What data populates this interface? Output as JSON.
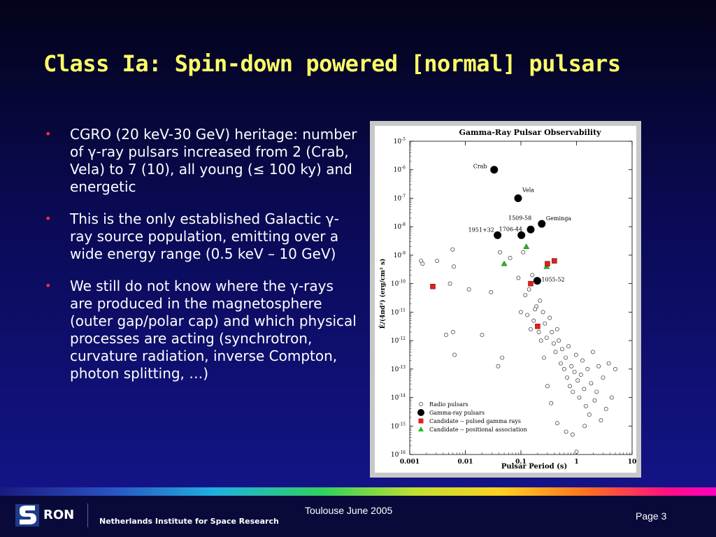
{
  "slide": {
    "title": "Class Ia: Spin-down powered [normal] pulsars",
    "bullets": [
      "CGRO (20 keV-30 GeV) heritage: number of γ-ray pulsars increased from 2 (Crab, Vela) to 7 (10), all young (≤ 100 ky) and energetic",
      "This is the only established Galactic γ-ray source population, emitting over a wide energy range (0.5 keV – 10 GeV)",
      "We still do not know where the γ-rays are produced in the magnetosphere (outer gap/polar cap) and which physical processes are acting  (synchrotron, curvature radiation, inverse Compton, photon splitting, …)"
    ],
    "bullet_symbol": "•"
  },
  "footer": {
    "logo_text": "RON",
    "institute": "Netherlands Institute for Space Research",
    "center_text": "Toulouse June 2005",
    "page": "Page 3"
  },
  "colors": {
    "title": "#ffff66",
    "bullet": "#ff3333",
    "candidate_pulsed": "#dd2020",
    "candidate_positional": "#22bb22"
  },
  "chart_data": {
    "type": "scatter",
    "title": "Gamma-Ray Pulsar Observability",
    "xlabel": "Pulsar Period (s)",
    "ylabel": "Ė/(4πd²)  (erg/cm² s)",
    "x_scale": "log",
    "y_scale": "log",
    "xlim": [
      0.001,
      10
    ],
    "ylim_exp": [
      -16,
      -5
    ],
    "x_ticks": [
      "0.001",
      "0.01",
      "0.1",
      "1",
      "10"
    ],
    "y_ticks": [
      "10-16",
      "10-15",
      "10-14",
      "10-13",
      "10-12",
      "10-11",
      "10-10",
      "10-9",
      "10-8",
      "10-7",
      "10-6",
      "10-5"
    ],
    "legend": [
      {
        "label": "Radio pulsars",
        "marker": "open-circle"
      },
      {
        "label": "Gamma-ray pulsars",
        "marker": "filled-circle"
      },
      {
        "label": "Candidate -- pulsed gamma rays",
        "marker": "red-square"
      },
      {
        "label": "Candidate -- positional association",
        "marker": "green-triangle"
      }
    ],
    "legend_position": "bottom-left",
    "series": [
      {
        "name": "Gamma-ray pulsars",
        "points": [
          {
            "period": 0.033,
            "log_flux": -6.0,
            "label": "Crab"
          },
          {
            "period": 0.089,
            "log_flux": -7.0,
            "label": "Vela"
          },
          {
            "period": 0.038,
            "log_flux": -8.3,
            "label": "1951+32"
          },
          {
            "period": 0.102,
            "log_flux": -8.3,
            "label": "1706-44"
          },
          {
            "period": 0.15,
            "log_flux": -8.1,
            "label": "1509-58"
          },
          {
            "period": 0.237,
            "log_flux": -7.9,
            "label": "Geminga"
          },
          {
            "period": 0.197,
            "log_flux": -9.9,
            "label": "1055-52"
          }
        ]
      },
      {
        "name": "Candidate -- pulsed gamma rays",
        "points": [
          {
            "period": 0.0026,
            "log_flux": -10.1
          },
          {
            "period": 0.3,
            "log_flux": -9.3
          },
          {
            "period": 0.4,
            "log_flux": -9.2
          },
          {
            "period": 0.15,
            "log_flux": -10.0
          },
          {
            "period": 0.2,
            "log_flux": -11.5
          }
        ]
      },
      {
        "name": "Candidate -- positional association",
        "points": [
          {
            "period": 0.125,
            "log_flux": -8.7
          },
          {
            "period": 0.05,
            "log_flux": -9.3
          },
          {
            "period": 0.29,
            "log_flux": -9.4
          }
        ]
      },
      {
        "name": "Radio pulsars",
        "points": [
          {
            "period": 0.0016,
            "log_flux": -9.2
          },
          {
            "period": 0.0017,
            "log_flux": -9.3
          },
          {
            "period": 0.0031,
            "log_flux": -9.2
          },
          {
            "period": 0.0053,
            "log_flux": -10.0
          },
          {
            "period": 0.0059,
            "log_flux": -8.8
          },
          {
            "period": 0.0062,
            "log_flux": -9.4
          },
          {
            "period": 0.0045,
            "log_flux": -11.8
          },
          {
            "period": 0.006,
            "log_flux": -11.7
          },
          {
            "period": 0.0064,
            "log_flux": -12.5
          },
          {
            "period": 0.0116,
            "log_flux": -10.2
          },
          {
            "period": 0.02,
            "log_flux": -11.8
          },
          {
            "period": 0.029,
            "log_flux": -10.3
          },
          {
            "period": 0.039,
            "log_flux": -12.9
          },
          {
            "period": 0.046,
            "log_flux": -12.6
          },
          {
            "period": 0.042,
            "log_flux": -8.9
          },
          {
            "period": 0.064,
            "log_flux": -9.1
          },
          {
            "period": 0.09,
            "log_flux": -9.8
          },
          {
            "period": 0.11,
            "log_flux": -8.9
          },
          {
            "period": 0.14,
            "log_flux": -10.2
          },
          {
            "period": 0.16,
            "log_flux": -9.7
          },
          {
            "period": 0.12,
            "log_flux": -10.4
          },
          {
            "period": 0.13,
            "log_flux": -11.1
          },
          {
            "period": 0.17,
            "log_flux": -11.3
          },
          {
            "period": 0.19,
            "log_flux": -10.8
          },
          {
            "period": 0.22,
            "log_flux": -10.6
          },
          {
            "period": 0.25,
            "log_flux": -11.0
          },
          {
            "period": 0.27,
            "log_flux": -11.4
          },
          {
            "period": 0.29,
            "log_flux": -11.9
          },
          {
            "period": 0.33,
            "log_flux": -11.2
          },
          {
            "period": 0.36,
            "log_flux": -11.7
          },
          {
            "period": 0.39,
            "log_flux": -12.1
          },
          {
            "period": 0.42,
            "log_flux": -12.4
          },
          {
            "period": 0.45,
            "log_flux": -11.6
          },
          {
            "period": 0.48,
            "log_flux": -12.0
          },
          {
            "period": 0.52,
            "log_flux": -12.8
          },
          {
            "period": 0.55,
            "log_flux": -12.3
          },
          {
            "period": 0.6,
            "log_flux": -13.0
          },
          {
            "period": 0.64,
            "log_flux": -12.6
          },
          {
            "period": 0.68,
            "log_flux": -13.3
          },
          {
            "period": 0.72,
            "log_flux": -12.2
          },
          {
            "period": 0.76,
            "log_flux": -13.6
          },
          {
            "period": 0.81,
            "log_flux": -12.9
          },
          {
            "period": 0.86,
            "log_flux": -13.8
          },
          {
            "period": 0.92,
            "log_flux": -13.1
          },
          {
            "period": 0.98,
            "log_flux": -12.5
          },
          {
            "period": 1.05,
            "log_flux": -13.4
          },
          {
            "period": 1.12,
            "log_flux": -14.0
          },
          {
            "period": 1.2,
            "log_flux": -13.2
          },
          {
            "period": 1.28,
            "log_flux": -12.7
          },
          {
            "period": 1.37,
            "log_flux": -13.7
          },
          {
            "period": 1.47,
            "log_flux": -14.3
          },
          {
            "period": 1.58,
            "log_flux": -13.0
          },
          {
            "period": 1.7,
            "log_flux": -14.6
          },
          {
            "period": 1.83,
            "log_flux": -13.5
          },
          {
            "period": 1.97,
            "log_flux": -12.4
          },
          {
            "period": 2.12,
            "log_flux": -14.1
          },
          {
            "period": 2.3,
            "log_flux": -13.8
          },
          {
            "period": 2.5,
            "log_flux": -12.9
          },
          {
            "period": 2.75,
            "log_flux": -14.8
          },
          {
            "period": 3.0,
            "log_flux": -13.3
          },
          {
            "period": 3.4,
            "log_flux": -14.4
          },
          {
            "period": 3.8,
            "log_flux": -12.8
          },
          {
            "period": 4.3,
            "log_flux": -14.0
          },
          {
            "period": 5.0,
            "log_flux": -13.0
          },
          {
            "period": 0.35,
            "log_flux": -14.2
          },
          {
            "period": 0.45,
            "log_flux": -14.9
          },
          {
            "period": 0.65,
            "log_flux": -15.2
          },
          {
            "period": 1.0,
            "log_flux": -15.9
          },
          {
            "period": 0.85,
            "log_flux": -15.3
          },
          {
            "period": 1.4,
            "log_flux": -15.0
          },
          {
            "period": 0.3,
            "log_flux": -13.6
          },
          {
            "period": 0.26,
            "log_flux": -12.6
          },
          {
            "period": 0.23,
            "log_flux": -12.0
          },
          {
            "period": 0.21,
            "log_flux": -11.7
          },
          {
            "period": 0.18,
            "log_flux": -10.9
          },
          {
            "period": 0.15,
            "log_flux": -11.6
          },
          {
            "period": 0.1,
            "log_flux": -11.0
          }
        ]
      }
    ]
  }
}
